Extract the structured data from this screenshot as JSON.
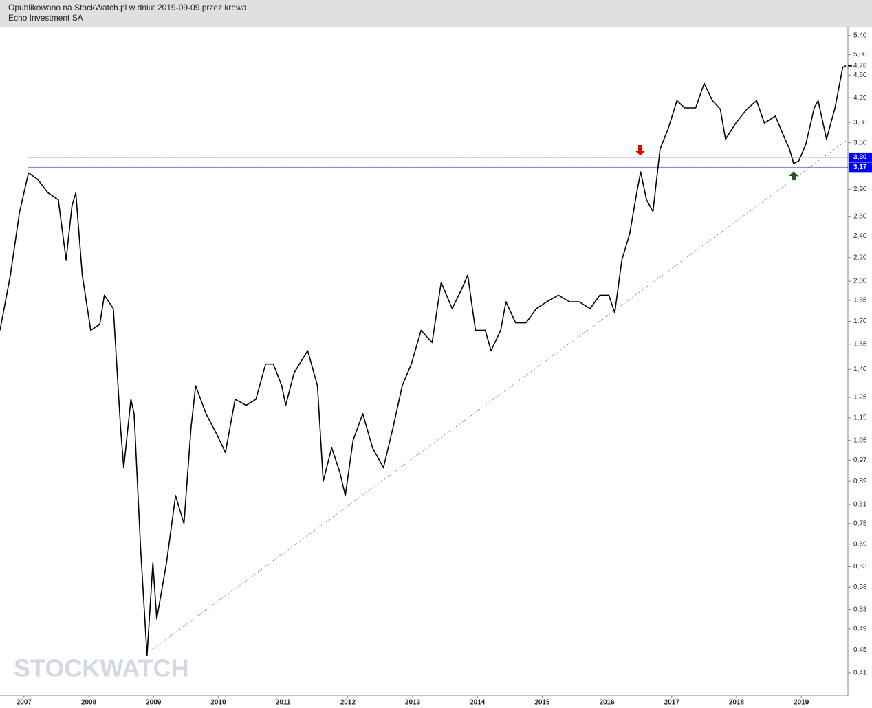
{
  "chart_data": {
    "type": "line",
    "subtitle": "Opublikowano na StockWatch.pl w dniu: 2019-09-09 przez krewa",
    "title": "Echo Investment SA",
    "watermark": "STOCKWATCH",
    "log_scale": true,
    "color": "#000000",
    "x": [
      2006.63,
      2006.79,
      2006.93,
      2007.07,
      2007.21,
      2007.37,
      2007.53,
      2007.65,
      2007.74,
      2007.8,
      2007.9,
      2008.03,
      2008.17,
      2008.24,
      2008.38,
      2008.49,
      2008.54,
      2008.65,
      2008.7,
      2008.8,
      2008.9,
      2008.99,
      2009.05,
      2009.2,
      2009.34,
      2009.47,
      2009.58,
      2009.65,
      2009.81,
      2009.97,
      2010.11,
      2010.26,
      2010.43,
      2010.58,
      2010.73,
      2010.85,
      2010.98,
      2011.04,
      2011.17,
      2011.38,
      2011.53,
      2011.62,
      2011.75,
      2011.88,
      2011.96,
      2012.08,
      2012.23,
      2012.38,
      2012.55,
      2012.7,
      2012.84,
      2012.98,
      2013.13,
      2013.3,
      2013.44,
      2013.61,
      2013.76,
      2013.85,
      2013.97,
      2014.12,
      2014.21,
      2014.36,
      2014.44,
      2014.59,
      2014.75,
      2014.91,
      2015.07,
      2015.25,
      2015.42,
      2015.57,
      2015.74,
      2015.89,
      2016.03,
      2016.12,
      2016.23,
      2016.35,
      2016.46,
      2016.52,
      2016.61,
      2016.71,
      2016.82,
      2016.95,
      2017.08,
      2017.2,
      2017.37,
      2017.5,
      2017.63,
      2017.75,
      2017.83,
      2017.99,
      2018.16,
      2018.31,
      2018.43,
      2018.6,
      2018.75,
      2018.82,
      2018.88,
      2018.96,
      2019.07,
      2019.2,
      2019.26,
      2019.39,
      2019.52,
      2019.64,
      2019.69
    ],
    "values": [
      1.64,
      2.05,
      2.64,
      3.1,
      3.02,
      2.86,
      2.78,
      2.18,
      2.71,
      2.86,
      2.05,
      1.64,
      1.68,
      1.89,
      1.79,
      1.11,
      0.94,
      1.24,
      1.17,
      0.68,
      0.44,
      0.64,
      0.51,
      0.64,
      0.84,
      0.75,
      1.11,
      1.31,
      1.17,
      1.08,
      1.0,
      1.24,
      1.21,
      1.24,
      1.43,
      1.43,
      1.31,
      1.21,
      1.38,
      1.51,
      1.31,
      0.89,
      1.02,
      0.92,
      0.84,
      1.05,
      1.17,
      1.02,
      0.94,
      1.11,
      1.31,
      1.43,
      1.64,
      1.56,
      1.99,
      1.79,
      1.94,
      2.05,
      1.64,
      1.64,
      1.51,
      1.64,
      1.84,
      1.69,
      1.69,
      1.79,
      1.84,
      1.89,
      1.84,
      1.84,
      1.79,
      1.89,
      1.89,
      1.76,
      2.18,
      2.42,
      2.86,
      3.11,
      2.78,
      2.65,
      3.41,
      3.72,
      4.15,
      4.03,
      4.03,
      4.45,
      4.15,
      4.01,
      3.55,
      3.79,
      4.01,
      4.15,
      3.79,
      3.9,
      3.55,
      3.41,
      3.22,
      3.25,
      3.48,
      4.03,
      4.15,
      3.55,
      4.03,
      4.75,
      4.78
    ],
    "xlim": [
      2006.63,
      2019.72
    ],
    "ylim": [
      0.374,
      5.58
    ],
    "xticks": [
      2007,
      2008,
      2009,
      2010,
      2011,
      2012,
      2013,
      2014,
      2015,
      2016,
      2017,
      2018,
      2019
    ],
    "yticks": [
      {
        "value": 5.4,
        "label": "5,40"
      },
      {
        "value": 5.0,
        "label": "5,00"
      },
      {
        "value": 4.6,
        "label": "4,60"
      },
      {
        "value": 4.2,
        "label": "4,20"
      },
      {
        "value": 3.8,
        "label": "3,80"
      },
      {
        "value": 3.5,
        "label": "3,50"
      },
      {
        "value": 2.9,
        "label": "2,90"
      },
      {
        "value": 2.6,
        "label": "2,60"
      },
      {
        "value": 2.4,
        "label": "2,40"
      },
      {
        "value": 2.2,
        "label": "2,20"
      },
      {
        "value": 2.0,
        "label": "2,00"
      },
      {
        "value": 1.85,
        "label": "1,85"
      },
      {
        "value": 1.7,
        "label": "1,70"
      },
      {
        "value": 1.55,
        "label": "1,55"
      },
      {
        "value": 1.4,
        "label": "1,40"
      },
      {
        "value": 1.25,
        "label": "1,25"
      },
      {
        "value": 1.15,
        "label": "1,15"
      },
      {
        "value": 1.05,
        "label": "1,05"
      },
      {
        "value": 0.97,
        "label": "0,97"
      },
      {
        "value": 0.89,
        "label": "0,89"
      },
      {
        "value": 0.81,
        "label": "0,81"
      },
      {
        "value": 0.75,
        "label": "0,75"
      },
      {
        "value": 0.69,
        "label": "0,69"
      },
      {
        "value": 0.63,
        "label": "0,63"
      },
      {
        "value": 0.58,
        "label": "0,58"
      },
      {
        "value": 0.53,
        "label": "0,53"
      },
      {
        "value": 0.49,
        "label": "0,49"
      },
      {
        "value": 0.45,
        "label": "0,45"
      },
      {
        "value": 0.41,
        "label": "0,41"
      }
    ],
    "last_price": {
      "value": 4.78,
      "label": "4,78"
    },
    "hlines": [
      {
        "value": 3.3,
        "label": "3,30",
        "start": 2007.07
      },
      {
        "value": 3.17,
        "label": "3,17",
        "start": 2007.07
      }
    ],
    "hline_color": "#000080",
    "hline_label_color": "#0000ff",
    "trendline": {
      "x": [
        2008.97,
        2019.72
      ],
      "values": [
        0.45,
        3.55
      ],
      "color": "#666666"
    }
  }
}
